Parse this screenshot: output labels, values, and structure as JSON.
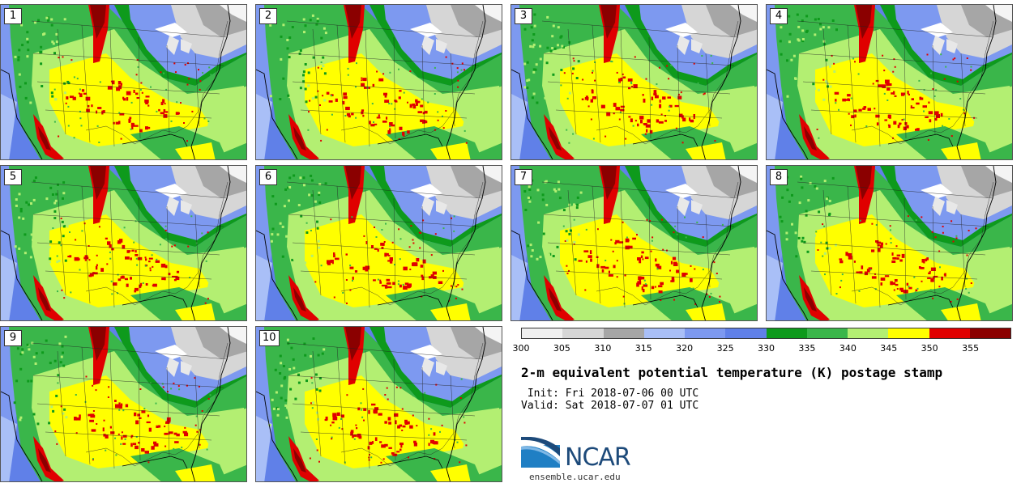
{
  "panels": [
    {
      "label": "1"
    },
    {
      "label": "2"
    },
    {
      "label": "3"
    },
    {
      "label": "4"
    },
    {
      "label": "5"
    },
    {
      "label": "6"
    },
    {
      "label": "7"
    },
    {
      "label": "8"
    },
    {
      "label": "9"
    },
    {
      "label": "10"
    }
  ],
  "colorbar": {
    "colors": [
      "#f0f0f0",
      "#d6d6d6",
      "#a6a6a6",
      "#a9bff7",
      "#7d99f0",
      "#6080e8",
      "#0e9a1c",
      "#3ab64a",
      "#b3ef72",
      "#ffff00",
      "#e00000",
      "#8b0000"
    ],
    "ticks": [
      "300",
      "305",
      "310",
      "315",
      "320",
      "325",
      "330",
      "335",
      "340",
      "345",
      "350",
      "355"
    ]
  },
  "title": "2-m equivalent potential temperature (K) postage stamp",
  "init_text": " Init: Fri 2018-07-06 00 UTC",
  "valid_text": "Valid: Sat 2018-07-07 01 UTC",
  "logo": {
    "text": "NCAR",
    "colors": {
      "blue": "#1d4a7a",
      "wave": "#1f7fc4"
    }
  },
  "url": "ensemble.ucar.edu"
}
